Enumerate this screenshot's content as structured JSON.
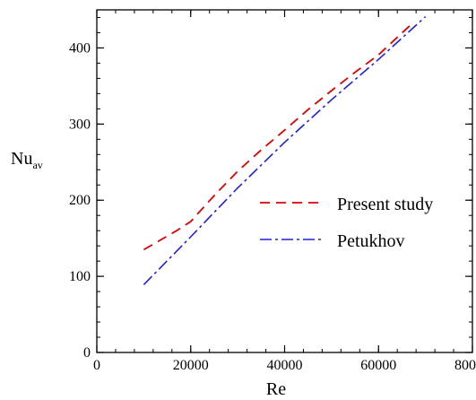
{
  "chart_data": {
    "type": "line",
    "xlabel": "Re",
    "ylabel": "Nu",
    "ylabel_subscript": "av",
    "xlim": [
      0,
      80000
    ],
    "ylim": [
      0,
      450
    ],
    "x_ticks": [
      0,
      20000,
      40000,
      60000,
      80000
    ],
    "y_ticks": [
      0,
      100,
      200,
      300,
      400
    ],
    "x_tick_labels": [
      "0",
      "20000",
      "40000",
      "60000",
      "80000"
    ],
    "y_tick_labels": [
      "0",
      "100",
      "200",
      "300",
      "400"
    ],
    "x_minor_step": 4000,
    "y_minor_step": 20,
    "grid": false,
    "legend_position": "center-right",
    "series": [
      {
        "name": "Present study",
        "color": "#e00000",
        "style": "dashed",
        "x": [
          10000,
          17000,
          20000,
          25000,
          30000,
          35000,
          40000,
          45000,
          50000,
          55000,
          60000,
          67500
        ],
        "y": [
          135,
          160,
          172,
          206,
          238,
          266,
          292,
          319,
          344,
          368,
          391,
          434
        ]
      },
      {
        "name": "Petukhov",
        "color": "#2020e0",
        "style": "dashdot",
        "x": [
          10000,
          20000,
          30000,
          40000,
          50000,
          60000,
          70000
        ],
        "y": [
          89,
          152,
          216,
          276,
          332,
          385,
          441
        ]
      }
    ]
  }
}
